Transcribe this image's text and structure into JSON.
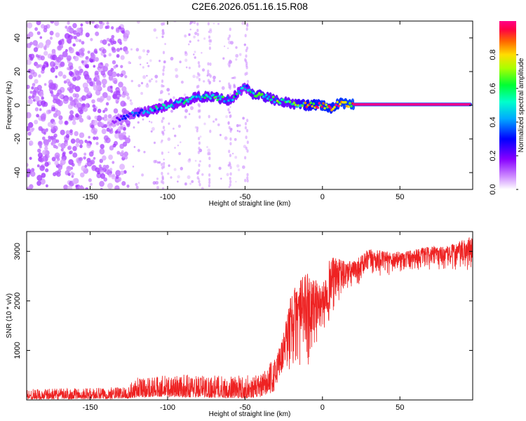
{
  "title": "C2E6.2026.051.16.15.R08",
  "colors": {
    "snr_line": "#ee2222",
    "axis": "#000000",
    "background": "#ffffff"
  },
  "chart_data": [
    {
      "type": "heatmap",
      "name": "spectrogram",
      "xlabel": "Height of straight line (km)",
      "ylabel": "Frequency (Hz)",
      "xlim": [
        -191,
        97
      ],
      "ylim": [
        -50,
        50
      ],
      "xticks": [
        -150,
        -100,
        -50,
        0,
        50
      ],
      "yticks": [
        -40,
        -20,
        0,
        20,
        40
      ],
      "colorbar": {
        "label": "Normalized spectral amplitude",
        "range": [
          0,
          1
        ],
        "ticks": [
          0.0,
          0.2,
          0.4,
          0.6,
          0.8
        ]
      },
      "ridge": {
        "x": [
          -138,
          -128,
          -120,
          -110,
          -100,
          -90,
          -80,
          -70,
          -60,
          -50,
          -46,
          -40,
          -30,
          -20,
          -10,
          0,
          5,
          10,
          20,
          50,
          96
        ],
        "freq": [
          -11,
          -7,
          -5,
          -3,
          0,
          2,
          5,
          5,
          3,
          11,
          7,
          6,
          3,
          1,
          0,
          0,
          -2,
          1,
          0.5,
          0.5,
          0.5
        ],
        "peak_amp": [
          0.1,
          0.3,
          0.4,
          0.5,
          0.5,
          0.5,
          0.55,
          0.6,
          0.55,
          0.45,
          0.6,
          0.65,
          0.6,
          0.6,
          0.8,
          0.95,
          0.9,
          0.95,
          1.0,
          1.0,
          1.0
        ]
      },
      "noise": {
        "x_range": [
          -191,
          -50
        ],
        "dense_until": -125,
        "amp_range": [
          0.05,
          0.15
        ]
      }
    },
    {
      "type": "line",
      "name": "snr",
      "xlabel": "Height of straight line (km)",
      "ylabel": "SNR (10 * v/v)",
      "xlim": [
        -191,
        97
      ],
      "ylim": [
        0,
        3400
      ],
      "xticks": [
        -150,
        -100,
        -50,
        0,
        50
      ],
      "yticks": [
        1000,
        2000,
        3000
      ],
      "envelope": {
        "x": [
          -191,
          -140,
          -125,
          -120,
          -110,
          -100,
          -80,
          -60,
          -50,
          -40,
          -30,
          -25,
          -20,
          -15,
          -10,
          0,
          5,
          10,
          20,
          30,
          40,
          50,
          60,
          70,
          80,
          96
        ],
        "low": [
          10,
          20,
          30,
          50,
          60,
          60,
          50,
          40,
          30,
          60,
          180,
          300,
          500,
          500,
          600,
          1300,
          1500,
          1900,
          2200,
          2450,
          2500,
          2550,
          2600,
          2600,
          2600,
          2500
        ],
        "high": [
          220,
          250,
          280,
          500,
          480,
          500,
          520,
          480,
          500,
          500,
          900,
          1400,
          2200,
          2400,
          2600,
          2300,
          2900,
          2850,
          2800,
          3050,
          3000,
          3000,
          3050,
          3100,
          3100,
          3300
        ]
      }
    }
  ]
}
